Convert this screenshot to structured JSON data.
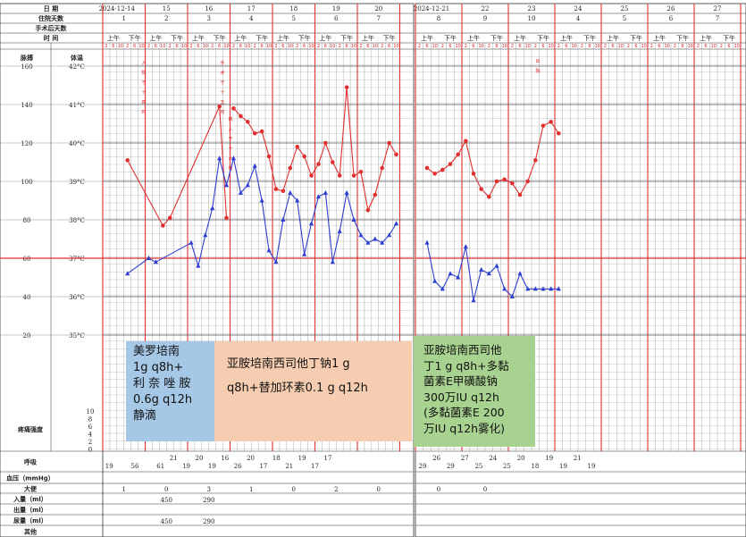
{
  "sheets": [
    {
      "id": "left",
      "dates": [
        "2024-12-14",
        "15",
        "16",
        "17",
        "18",
        "19",
        "20"
      ],
      "hospital_days": [
        "1",
        "2",
        "3",
        "4",
        "5",
        "6",
        "7"
      ],
      "stool": [
        "1",
        "0",
        "3",
        "1",
        "0",
        "2",
        "0"
      ],
      "intake": [
        "",
        "450",
        "290"
      ],
      "urine": [
        "",
        "450",
        "290"
      ],
      "respiration": [
        "19",
        "",
        "56",
        "",
        "61",
        "21",
        "19",
        "20",
        "19",
        "16",
        "26",
        "20",
        "17",
        "18",
        "21",
        "19",
        "17",
        "17"
      ],
      "bp": [
        "92",
        "",
        "",
        "",
        "",
        "",
        "",
        "",
        "",
        "",
        "",
        "",
        "",
        ""
      ],
      "vertical_notes": [
        "入院于十四时",
        "手术于十五时",
        "转入于十六时",
        "出院于十七时"
      ]
    },
    {
      "id": "right",
      "dates": [
        "2024-12-21",
        "22",
        "23",
        "24",
        "25",
        "26",
        "27"
      ],
      "hospital_days": [
        "8",
        "9",
        "10",
        "4",
        "5",
        "6",
        "7"
      ],
      "stool": [
        "0",
        "0",
        "",
        "",
        "",
        "",
        ""
      ],
      "intake": [
        "",
        "",
        ""
      ],
      "urine": [
        "",
        "",
        ""
      ],
      "respiration": [
        "29",
        "26",
        "29",
        "27",
        "25",
        "24",
        "25",
        "20",
        "18",
        "19",
        "19",
        "21",
        "19"
      ],
      "bp": [
        "",
        "",
        "",
        "",
        "",
        "",
        "",
        "",
        "",
        "",
        "",
        "",
        ""
      ],
      "vertical_notes": [
        "出院"
      ]
    }
  ],
  "row_labels": {
    "date": "日    期",
    "hospital_days": "住院天数",
    "post_op_days": "手术后天数",
    "time": "时    间",
    "pulse": "脉搏",
    "temperature": "体温",
    "pain": "疼痛强度",
    "respiration": "呼吸",
    "bp": "血压（mmHg）",
    "stool": "大便",
    "intake": "入量（ml）",
    "output": "出量（ml）",
    "urine": "尿量（ml）",
    "other": "其他"
  },
  "ampm": [
    "上午",
    "下午"
  ],
  "hour_ticks": [
    "2",
    "6",
    "10",
    "2",
    "6",
    "10"
  ],
  "pulse_axis": [
    "160",
    "140",
    "120",
    "100",
    "80",
    "60",
    "40",
    "20"
  ],
  "temp_axis": [
    "42°C",
    "41°C",
    "40°C",
    "39°C",
    "38°C",
    "37°C",
    "36°C",
    "35°C"
  ],
  "pain_axis": [
    "10",
    "8",
    "6",
    "4",
    "2",
    "0"
  ],
  "chart_data": {
    "type": "line",
    "title": "",
    "xlabel": "时间",
    "ylabel": "脉搏 / 体温",
    "x_unit": "4-hour slot (6 per day)",
    "y_axes": {
      "pulse": {
        "min": 0,
        "max": 180,
        "ticks": [
          20,
          40,
          60,
          80,
          100,
          120,
          140,
          160
        ]
      },
      "temperature": {
        "min": 34,
        "max": 43,
        "ticks": [
          35,
          36,
          37,
          38,
          39,
          40,
          41,
          42
        ]
      }
    },
    "series": [
      {
        "name": "脉搏",
        "color": "#e03030",
        "marker": "circle",
        "segments": [
          [
            [
              3,
              111
            ],
            [
              8,
              77
            ],
            [
              9,
              81
            ],
            [
              16,
              139
            ],
            [
              17,
              81
            ]
          ],
          [
            [
              18,
              138
            ],
            [
              19,
              134
            ],
            [
              20,
              131
            ],
            [
              21,
              125
            ],
            [
              22,
              126
            ],
            [
              23,
              113
            ],
            [
              24,
              96
            ],
            [
              25,
              95
            ],
            [
              26,
              107
            ],
            [
              27,
              118
            ],
            [
              28,
              113
            ],
            [
              29,
              103
            ],
            [
              30,
              109
            ],
            [
              31,
              120
            ],
            [
              32,
              110
            ],
            [
              33,
              103
            ],
            [
              34,
              149
            ],
            [
              35,
              103
            ],
            [
              36,
              105
            ],
            [
              37,
              85
            ],
            [
              38,
              93
            ],
            [
              39,
              107
            ],
            [
              40,
              120
            ],
            [
              41,
              114
            ]
          ],
          [
            [
              43,
              107
            ],
            [
              44,
              104
            ],
            [
              45,
              106
            ],
            [
              46,
              109
            ],
            [
              47,
              114
            ],
            [
              48,
              121
            ],
            [
              49,
              104
            ],
            [
              50,
              96
            ],
            [
              51,
              92
            ],
            [
              52,
              100
            ],
            [
              53,
              101
            ],
            [
              54,
              99
            ],
            [
              55,
              93
            ],
            [
              56,
              100
            ],
            [
              57,
              111
            ],
            [
              58,
              129
            ],
            [
              59,
              131
            ],
            [
              60,
              125
            ]
          ]
        ]
      },
      {
        "name": "体温",
        "color": "#2f3fd0",
        "marker": "triangle",
        "segments": [
          [
            [
              3,
              36.6
            ],
            [
              6,
              37.0
            ],
            [
              7,
              36.9
            ],
            [
              12,
              37.4
            ],
            [
              13,
              36.8
            ],
            [
              14,
              37.6
            ],
            [
              15,
              38.3
            ],
            [
              16,
              39.6
            ],
            [
              17,
              38.9
            ],
            [
              18,
              39.6
            ],
            [
              19,
              38.7
            ],
            [
              20,
              38.9
            ],
            [
              21,
              39.4
            ],
            [
              22,
              38.5
            ],
            [
              23,
              37.2
            ],
            [
              24,
              36.9
            ],
            [
              25,
              38.0
            ],
            [
              26,
              38.7
            ],
            [
              27,
              38.5
            ],
            [
              28,
              37.1
            ],
            [
              29,
              37.9
            ],
            [
              30,
              38.6
            ],
            [
              31,
              38.7
            ],
            [
              32,
              36.9
            ],
            [
              33,
              37.7
            ],
            [
              34,
              38.7
            ],
            [
              35,
              38.0
            ],
            [
              36,
              37.6
            ],
            [
              37,
              37.4
            ],
            [
              38,
              37.5
            ],
            [
              39,
              37.4
            ],
            [
              40,
              37.6
            ],
            [
              41,
              37.9
            ]
          ],
          [
            [
              43,
              37.4
            ],
            [
              44,
              36.4
            ],
            [
              45,
              36.2
            ],
            [
              46,
              36.6
            ],
            [
              47,
              36.5
            ],
            [
              48,
              37.3
            ],
            [
              49,
              35.9
            ],
            [
              50,
              36.7
            ],
            [
              51,
              36.6
            ],
            [
              52,
              36.8
            ],
            [
              53,
              36.2
            ],
            [
              54,
              36.0
            ],
            [
              55,
              36.6
            ],
            [
              56,
              36.2
            ],
            [
              57,
              36.2
            ],
            [
              58,
              36.2
            ],
            [
              59,
              36.2
            ],
            [
              60,
              36.2
            ]
          ]
        ]
      }
    ],
    "reference_line": {
      "value": "37°C",
      "color": "#e03030"
    }
  },
  "annotations": {
    "box1": [
      "美罗培南",
      "1g q8h+",
      "利 奈 唑 胺",
      "0.6g q12h",
      "静滴"
    ],
    "box2": [
      "亚胺培南西司他丁钠1  g",
      "q8h+替加环素0.1 g q12h"
    ],
    "box3": [
      "亚胺培南西司他",
      "丁1 g q8h+多黏",
      "菌素E甲磺酸钠",
      "300万IU q12h",
      "(多黏菌素E 200",
      "万IU q12h雾化)"
    ]
  }
}
